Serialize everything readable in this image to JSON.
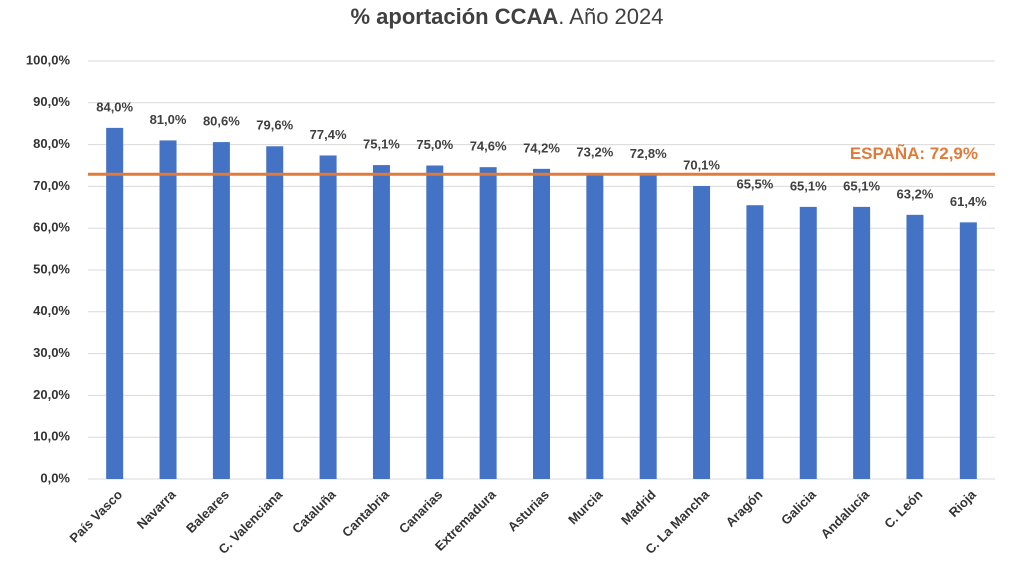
{
  "chart_data": {
    "type": "bar",
    "title": {
      "bold": "% aportación CCAA",
      "normal": ". Año 2024"
    },
    "categories": [
      "País Vasco",
      "Navarra",
      "Baleares",
      "C. Valenciana",
      "Cataluña",
      "Cantabria",
      "Canarias",
      "Extremadura",
      "Asturias",
      "Murcia",
      "Madrid",
      "C. La Mancha",
      "Aragón",
      "Galicia",
      "Andalucía",
      "C. León",
      "Rioja"
    ],
    "values": [
      84.0,
      81.0,
      80.6,
      79.6,
      77.4,
      75.1,
      75.0,
      74.6,
      74.2,
      73.2,
      72.8,
      70.1,
      65.5,
      65.1,
      65.1,
      63.2,
      61.4
    ],
    "value_labels": [
      "84,0%",
      "81,0%",
      "80,6%",
      "79,6%",
      "77,4%",
      "75,1%",
      "75,0%",
      "74,6%",
      "74,2%",
      "73,2%",
      "72,8%",
      "70,1%",
      "65,5%",
      "65,1%",
      "65,1%",
      "63,2%",
      "61,4%"
    ],
    "color": "#4472c4",
    "ylim": [
      0,
      100
    ],
    "yticks": [
      {
        "value": 0,
        "label": "0,0%"
      },
      {
        "value": 10,
        "label": "10,0%"
      },
      {
        "value": 20,
        "label": "20,0%"
      },
      {
        "value": 30,
        "label": "30,0%"
      },
      {
        "value": 40,
        "label": "40,0%"
      },
      {
        "value": 50,
        "label": "50,0%"
      },
      {
        "value": 60,
        "label": "60,0%"
      },
      {
        "value": 70,
        "label": "70,0%"
      },
      {
        "value": 80,
        "label": "80,0%"
      },
      {
        "value": 90,
        "label": "90,0%"
      },
      {
        "value": 100,
        "label": "100,0%"
      }
    ],
    "grid": true,
    "reference": {
      "value": 72.9,
      "label": "ESPAÑA: 72,9%",
      "color": "#e07b39"
    }
  }
}
